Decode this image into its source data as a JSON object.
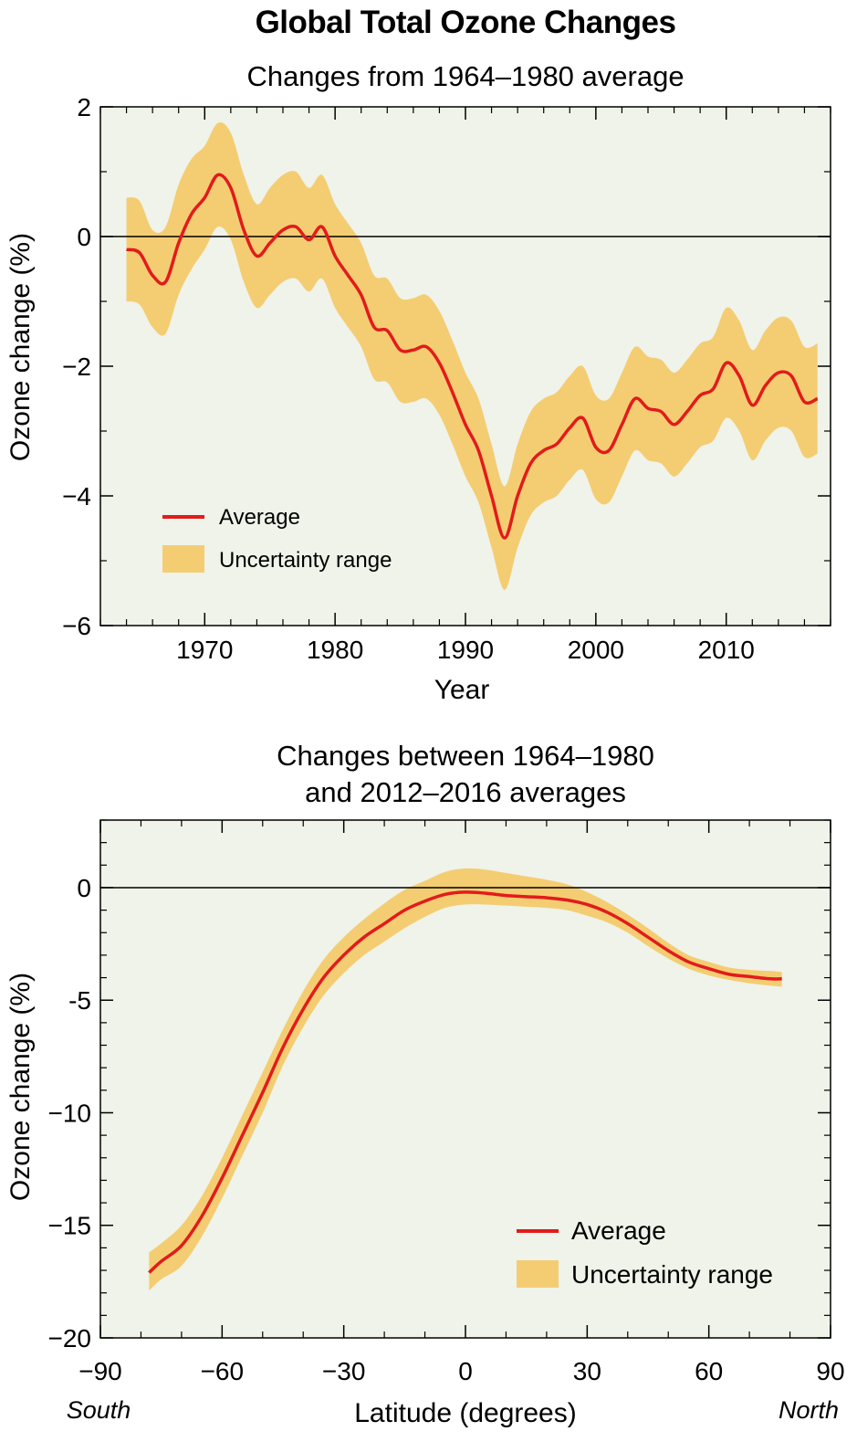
{
  "title": "Global Total Ozone Changes",
  "colors": {
    "plot_bg": "#eff3e9",
    "band": "#f4cd73",
    "line": "#e21b1b",
    "zero": "#000000"
  },
  "chart_data": [
    {
      "type": "line",
      "title": "Changes from 1964–1980 average",
      "xlabel": "Year",
      "ylabel": "Ozone change (%)",
      "xlim": [
        1962,
        2018
      ],
      "ylim": [
        -6,
        2
      ],
      "xticks": [
        1970,
        1980,
        1990,
        2000,
        2010
      ],
      "xtick_labels": [
        "1970",
        "1980",
        "1990",
        "2000",
        "2010"
      ],
      "yticks": [
        2,
        0,
        -2,
        -4,
        -6
      ],
      "ytick_labels": [
        "2",
        "0",
        "−2",
        "−4",
        "−6"
      ],
      "grid": false,
      "zero_line": true,
      "legend_position": "bottom-left",
      "legend": {
        "line": "Average",
        "band": "Uncertainty range"
      },
      "series": [
        {
          "name": "Average",
          "x": [
            1964,
            1965,
            1966,
            1967,
            1968,
            1969,
            1970,
            1971,
            1972,
            1973,
            1974,
            1975,
            1976,
            1977,
            1978,
            1979,
            1980,
            1981,
            1982,
            1983,
            1984,
            1985,
            1986,
            1987,
            1988,
            1989,
            1990,
            1991,
            1992,
            1993,
            1994,
            1995,
            1996,
            1997,
            1998,
            1999,
            2000,
            2001,
            2002,
            2003,
            2004,
            2005,
            2006,
            2007,
            2008,
            2009,
            2010,
            2011,
            2012,
            2013,
            2014,
            2015,
            2016,
            2017
          ],
          "y": [
            -0.2,
            -0.25,
            -0.6,
            -0.7,
            -0.1,
            0.35,
            0.6,
            0.95,
            0.75,
            0.1,
            -0.3,
            -0.1,
            0.1,
            0.15,
            -0.05,
            0.15,
            -0.3,
            -0.6,
            -0.9,
            -1.4,
            -1.45,
            -1.75,
            -1.75,
            -1.7,
            -1.95,
            -2.4,
            -2.9,
            -3.3,
            -4.0,
            -4.65,
            -4.0,
            -3.5,
            -3.3,
            -3.2,
            -2.95,
            -2.8,
            -3.25,
            -3.3,
            -2.9,
            -2.5,
            -2.65,
            -2.7,
            -2.9,
            -2.7,
            -2.45,
            -2.35,
            -1.95,
            -2.15,
            -2.6,
            -2.3,
            -2.1,
            -2.15,
            -2.55,
            -2.5
          ]
        },
        {
          "name": "Uncertainty range",
          "x": [
            1964,
            1965,
            1966,
            1967,
            1968,
            1969,
            1970,
            1971,
            1972,
            1973,
            1974,
            1975,
            1976,
            1977,
            1978,
            1979,
            1980,
            1981,
            1982,
            1983,
            1984,
            1985,
            1986,
            1987,
            1988,
            1989,
            1990,
            1991,
            1992,
            1993,
            1994,
            1995,
            1996,
            1997,
            1998,
            1999,
            2000,
            2001,
            2002,
            2003,
            2004,
            2005,
            2006,
            2007,
            2008,
            2009,
            2010,
            2011,
            2012,
            2013,
            2014,
            2015,
            2016,
            2017
          ],
          "upper": [
            0.6,
            0.55,
            0.1,
            0.15,
            0.8,
            1.2,
            1.4,
            1.75,
            1.6,
            0.95,
            0.5,
            0.75,
            0.95,
            1.0,
            0.75,
            0.95,
            0.5,
            0.2,
            -0.1,
            -0.6,
            -0.65,
            -0.95,
            -0.95,
            -0.9,
            -1.15,
            -1.6,
            -2.1,
            -2.5,
            -3.2,
            -3.85,
            -3.2,
            -2.7,
            -2.5,
            -2.4,
            -2.15,
            -2.0,
            -2.45,
            -2.5,
            -2.1,
            -1.7,
            -1.85,
            -1.9,
            -2.1,
            -1.9,
            -1.65,
            -1.55,
            -1.1,
            -1.3,
            -1.75,
            -1.45,
            -1.25,
            -1.3,
            -1.7,
            -1.65
          ],
          "lower": [
            -1.0,
            -1.05,
            -1.4,
            -1.5,
            -0.9,
            -0.5,
            -0.2,
            0.15,
            -0.05,
            -0.7,
            -1.1,
            -0.9,
            -0.7,
            -0.65,
            -0.85,
            -0.65,
            -1.1,
            -1.4,
            -1.7,
            -2.2,
            -2.25,
            -2.55,
            -2.55,
            -2.5,
            -2.75,
            -3.2,
            -3.7,
            -4.1,
            -4.8,
            -5.45,
            -4.8,
            -4.3,
            -4.1,
            -4.0,
            -3.75,
            -3.6,
            -4.05,
            -4.1,
            -3.7,
            -3.3,
            -3.45,
            -3.5,
            -3.7,
            -3.5,
            -3.25,
            -3.15,
            -2.8,
            -3.0,
            -3.45,
            -3.15,
            -2.95,
            -3.0,
            -3.4,
            -3.35
          ]
        }
      ]
    },
    {
      "type": "line",
      "title": "Changes between 1964–1980\nand 2012–2016 averages",
      "xlabel": "Latitude (degrees)",
      "ylabel": "Ozone change (%)",
      "xlim": [
        -90,
        90
      ],
      "ylim": [
        -20,
        3
      ],
      "xticks": [
        -90,
        -60,
        -30,
        0,
        30,
        60,
        90
      ],
      "xtick_labels": [
        "−90",
        "−60",
        "−30",
        "0",
        "30",
        "60",
        "90"
      ],
      "yticks": [
        0,
        -5,
        -10,
        -15,
        -20
      ],
      "ytick_labels": [
        "0",
        "-5",
        "−10",
        "−15",
        "−20"
      ],
      "x_end_labels": {
        "left": "South",
        "right": "North"
      },
      "grid": false,
      "zero_line": true,
      "legend_position": "bottom-right",
      "legend": {
        "line": "Average",
        "band": "Uncertainty range"
      },
      "series": [
        {
          "name": "Average",
          "x": [
            -78,
            -75,
            -70,
            -65,
            -60,
            -55,
            -50,
            -45,
            -40,
            -35,
            -30,
            -25,
            -20,
            -15,
            -10,
            -5,
            0,
            5,
            10,
            15,
            20,
            25,
            30,
            35,
            40,
            45,
            50,
            55,
            60,
            65,
            70,
            75,
            78
          ],
          "y": [
            -17.1,
            -16.6,
            -15.9,
            -14.6,
            -12.9,
            -11.0,
            -9.1,
            -7.1,
            -5.4,
            -4.0,
            -3.0,
            -2.2,
            -1.6,
            -1.0,
            -0.6,
            -0.3,
            -0.2,
            -0.25,
            -0.35,
            -0.4,
            -0.45,
            -0.55,
            -0.75,
            -1.1,
            -1.6,
            -2.2,
            -2.8,
            -3.3,
            -3.6,
            -3.85,
            -3.95,
            -4.05,
            -4.05
          ]
        },
        {
          "name": "Uncertainty range",
          "x": [
            -78,
            -75,
            -70,
            -65,
            -60,
            -55,
            -50,
            -45,
            -40,
            -35,
            -30,
            -25,
            -20,
            -15,
            -10,
            -5,
            0,
            5,
            10,
            15,
            20,
            25,
            30,
            35,
            40,
            45,
            50,
            55,
            60,
            65,
            70,
            75,
            78
          ],
          "upper": [
            -16.2,
            -15.8,
            -15.0,
            -13.7,
            -12.0,
            -10.1,
            -8.2,
            -6.3,
            -4.6,
            -3.2,
            -2.2,
            -1.4,
            -0.7,
            -0.1,
            0.3,
            0.7,
            0.85,
            0.8,
            0.65,
            0.5,
            0.35,
            0.15,
            -0.2,
            -0.65,
            -1.2,
            -1.8,
            -2.45,
            -3.0,
            -3.3,
            -3.55,
            -3.65,
            -3.7,
            -3.75
          ],
          "lower": [
            -17.9,
            -17.4,
            -16.8,
            -15.5,
            -13.8,
            -11.9,
            -10.0,
            -7.9,
            -6.2,
            -4.8,
            -3.8,
            -3.0,
            -2.4,
            -1.8,
            -1.3,
            -0.9,
            -0.75,
            -0.75,
            -0.8,
            -0.85,
            -0.9,
            -1.0,
            -1.25,
            -1.55,
            -2.0,
            -2.6,
            -3.15,
            -3.6,
            -3.9,
            -4.1,
            -4.25,
            -4.35,
            -4.4
          ]
        }
      ]
    }
  ]
}
